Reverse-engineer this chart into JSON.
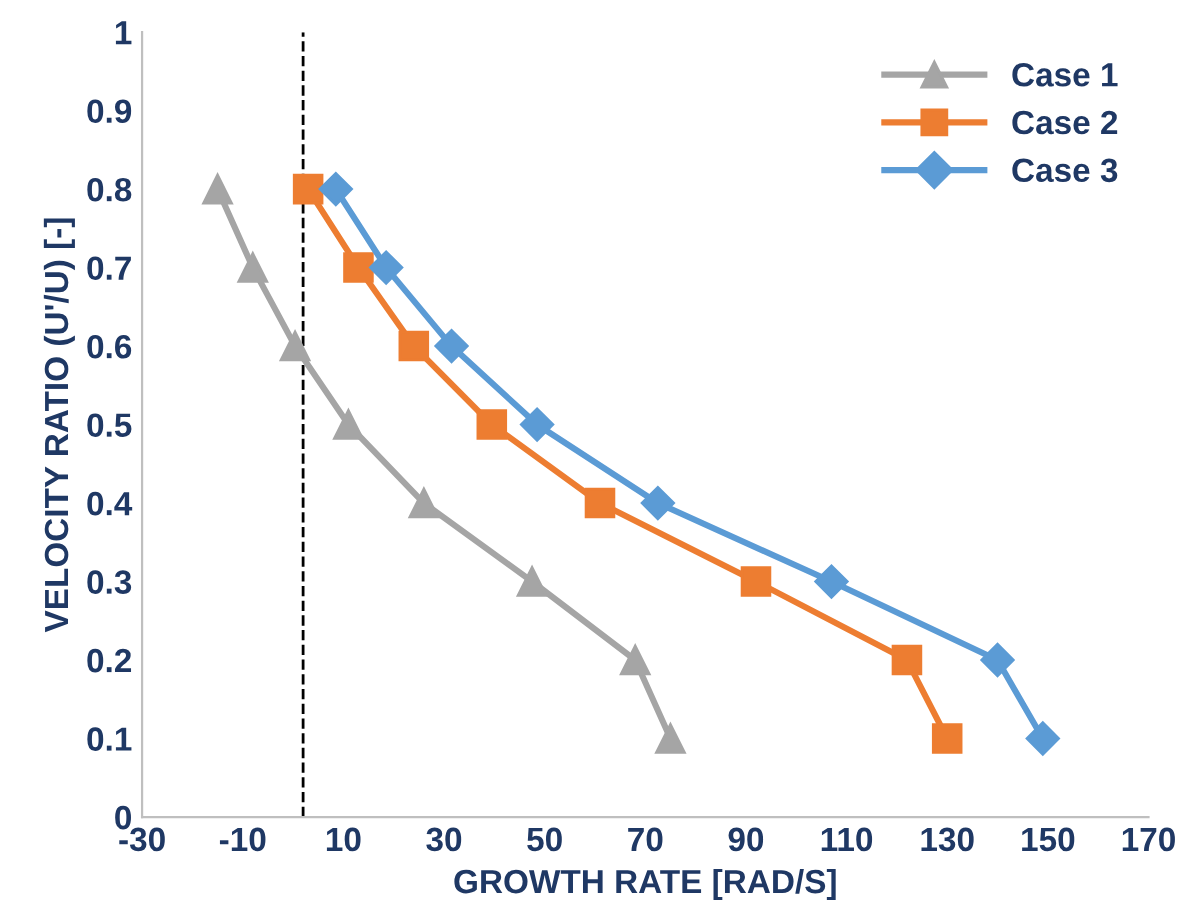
{
  "chart_data": {
    "type": "line",
    "xlabel": "GROWTH RATE [RAD/S]",
    "ylabel": "VELOCITY RATIO (U'/U) [-]",
    "xlim": [
      -30,
      170
    ],
    "xticks": [
      -30,
      -10,
      10,
      30,
      50,
      70,
      90,
      110,
      130,
      150,
      170
    ],
    "ylim": [
      0,
      1
    ],
    "yticks": [
      0,
      0.1,
      0.2,
      0.3,
      0.4,
      0.5,
      0.6,
      0.7,
      0.8,
      0.9,
      1
    ],
    "grid": false,
    "legend": "top right",
    "line_style": "solid",
    "series": [
      {
        "name": "Case 1",
        "color": "#a5a5a5",
        "marker": "triangle",
        "x": [
          -15,
          -8,
          0.4,
          11,
          26,
          47.5,
          68,
          75
        ],
        "values": [
          0.8,
          0.7,
          0.6,
          0.5,
          0.4,
          0.3,
          0.2,
          0.1
        ]
      },
      {
        "name": "Case 2",
        "color": "#ed7d31",
        "marker": "square",
        "x": [
          3,
          13,
          24,
          39.5,
          61,
          92,
          122,
          130
        ],
        "values": [
          0.8,
          0.7,
          0.6,
          0.5,
          0.4,
          0.3,
          0.2,
          0.1
        ]
      },
      {
        "name": "Case 3",
        "color": "#5b9bd5",
        "marker": "diamond",
        "x": [
          8.5,
          18.5,
          31.5,
          48.5,
          72.5,
          107,
          140,
          149
        ],
        "values": [
          0.8,
          0.7,
          0.6,
          0.5,
          0.4,
          0.3,
          0.2,
          0.1
        ]
      }
    ],
    "ref_lines": [
      {
        "axis": "x",
        "value": 2,
        "color": "#000000",
        "line_style": "dashed"
      }
    ]
  }
}
